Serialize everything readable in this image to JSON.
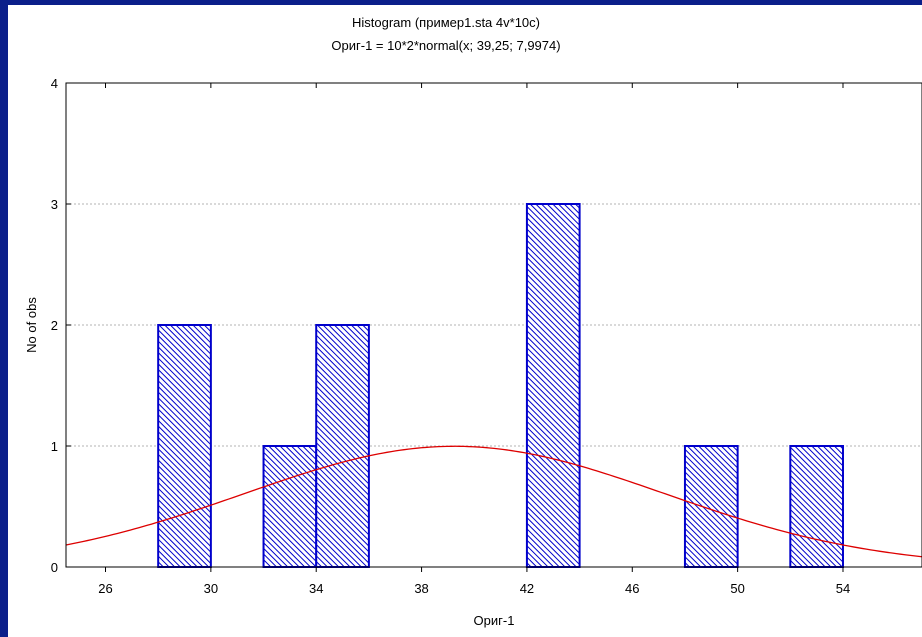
{
  "chart_data": {
    "type": "bar",
    "title": "Histogram (пример1.sta 4v*10c)",
    "subtitle": "Ориг-1 = 10*2*normal(x; 39,25; 7,9974)",
    "xlabel": "Ориг-1",
    "ylabel": "No of obs",
    "xlim": [
      24.5,
      57
    ],
    "ylim": [
      0,
      4
    ],
    "x_ticks": [
      26,
      30,
      34,
      38,
      42,
      46,
      50,
      54
    ],
    "x_tick_labels": [
      "26",
      "30",
      "34",
      "38",
      "42",
      "46",
      "50",
      "54"
    ],
    "y_ticks": [
      0,
      1,
      2,
      3,
      4
    ],
    "y_tick_labels": [
      "0",
      "1",
      "2",
      "3",
      "4"
    ],
    "grid": true,
    "bars": [
      {
        "x0": 28,
        "x1": 30,
        "value": 2
      },
      {
        "x0": 32,
        "x1": 34,
        "value": 1
      },
      {
        "x0": 34,
        "x1": 36,
        "value": 2
      },
      {
        "x0": 42,
        "x1": 44,
        "value": 3
      },
      {
        "x0": 48,
        "x1": 50,
        "value": 1
      },
      {
        "x0": 52,
        "x1": 54,
        "value": 1
      }
    ],
    "curve": {
      "type": "normal",
      "mean": 39.25,
      "sd": 7.9974,
      "n": 10,
      "bin_width": 2
    },
    "colors": {
      "bar_stroke": "#0000cc",
      "bar_hatch": "#0000cc",
      "curve": "#dd0000",
      "grid": "#9a9a9a",
      "background": "#0b1f8a"
    }
  }
}
